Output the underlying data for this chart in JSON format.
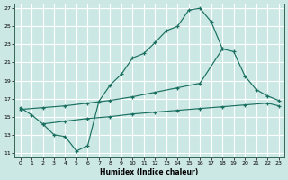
{
  "bg_color": "#cce8e5",
  "grid_color": "#b8d8d5",
  "line_color": "#1a7060",
  "xlabel": "Humidex (Indice chaleur)",
  "xlim": [
    -0.5,
    23.5
  ],
  "ylim": [
    10.5,
    27.5
  ],
  "xticks": [
    0,
    1,
    2,
    3,
    4,
    5,
    6,
    7,
    8,
    9,
    10,
    11,
    12,
    13,
    14,
    15,
    16,
    17,
    18,
    19,
    20,
    21,
    22,
    23
  ],
  "yticks": [
    11,
    13,
    15,
    17,
    19,
    21,
    23,
    25,
    27
  ],
  "line1_x": [
    0,
    1,
    2,
    3,
    4,
    5,
    6,
    7,
    8,
    9,
    10,
    11,
    12,
    13,
    14,
    15,
    16,
    17,
    18
  ],
  "line1_y": [
    16,
    15.2,
    14.2,
    13.0,
    12.8,
    11.2,
    11.8,
    16.7,
    18.5,
    19.7,
    21.5,
    22.0,
    23.2,
    24.5,
    25.0,
    26.8,
    27.0,
    25.5,
    22.5
  ],
  "line2_x": [
    0,
    2,
    4,
    6,
    8,
    10,
    12,
    14,
    16,
    18,
    19,
    20,
    21,
    22,
    23
  ],
  "line2_y": [
    15.8,
    16.0,
    16.2,
    16.5,
    16.8,
    17.2,
    17.7,
    18.2,
    18.7,
    22.5,
    22.2,
    19.5,
    18.0,
    17.3,
    16.8
  ],
  "line3_x": [
    2,
    4,
    6,
    8,
    10,
    12,
    14,
    16,
    18,
    20,
    22,
    23
  ],
  "line3_y": [
    14.2,
    14.5,
    14.8,
    15.0,
    15.3,
    15.5,
    15.7,
    15.9,
    16.1,
    16.3,
    16.5,
    16.2
  ]
}
